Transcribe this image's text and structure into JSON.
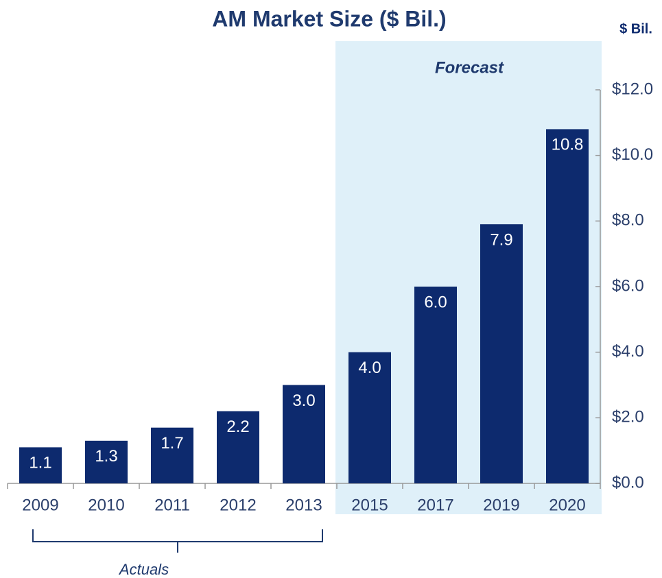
{
  "chart_data": {
    "type": "bar",
    "title": "AM Market Size ($ Bil.)",
    "y_axis_label": "$ Bil.",
    "annotations": [
      "Forecast",
      "Actuals"
    ],
    "categories": [
      "2009",
      "2010",
      "2011",
      "2012",
      "2013",
      "2015",
      "2017",
      "2019",
      "2020"
    ],
    "values": [
      1.1,
      1.3,
      1.7,
      2.2,
      3.0,
      4.0,
      6.0,
      7.9,
      10.8
    ],
    "value_labels": [
      "1.1",
      "1.3",
      "1.7",
      "2.2",
      "3.0",
      "4.0",
      "6.0",
      "7.9",
      "10.8"
    ],
    "color": "#0d2a6e",
    "ylim": [
      0,
      12
    ],
    "yticks": [
      {
        "value": 0,
        "label": "$0.0"
      },
      {
        "value": 2,
        "label": "$2.0"
      },
      {
        "value": 4,
        "label": "$4.0"
      },
      {
        "value": 6,
        "label": "$6.0"
      },
      {
        "value": 8,
        "label": "$8.0"
      },
      {
        "value": 10,
        "label": "$10.0"
      },
      {
        "value": 12,
        "label": "$12.0"
      }
    ],
    "grid": false
  }
}
